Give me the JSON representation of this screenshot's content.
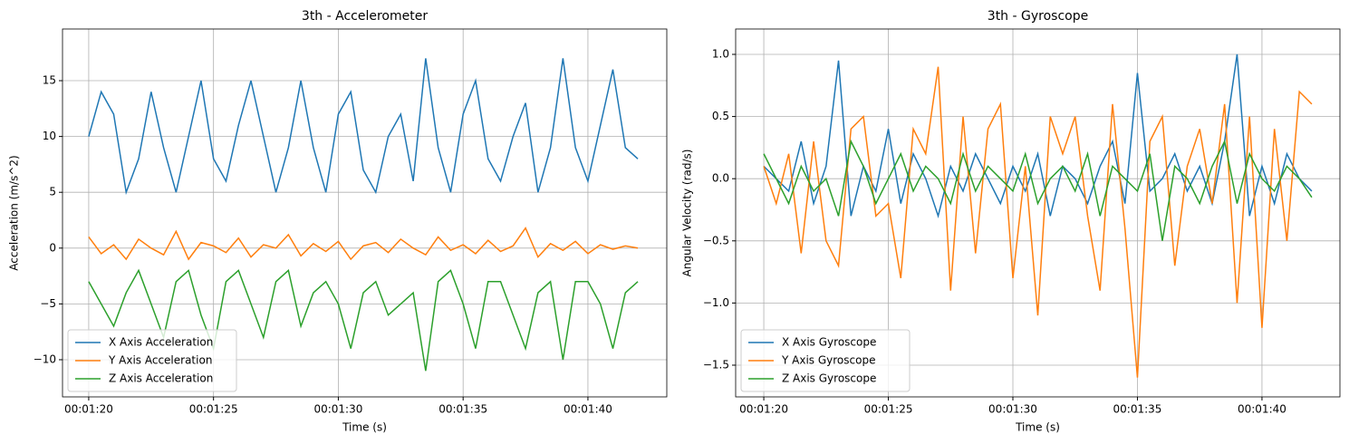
{
  "chart_data": [
    {
      "type": "line",
      "title": "3th - Accelerometer",
      "xlabel": "Time (s)",
      "ylabel": "Acceleration (m/s^2)",
      "x": [
        80,
        80.5,
        81,
        81.5,
        82,
        82.5,
        83,
        83.5,
        84,
        84.5,
        85,
        85.5,
        86,
        86.5,
        87,
        87.5,
        88,
        88.5,
        89,
        89.5,
        90,
        90.5,
        91,
        91.5,
        92,
        92.5,
        93,
        93.5,
        94,
        94.5,
        95,
        95.5,
        96,
        96.5,
        97,
        97.5,
        98,
        98.5,
        99,
        99.5,
        100,
        100.5,
        101,
        101.5,
        102
      ],
      "series": [
        {
          "name": "X Axis Acceleration",
          "color": "#1f77b4",
          "values": [
            10,
            14,
            12,
            5,
            8,
            14,
            9,
            5,
            10,
            15,
            8,
            6,
            11,
            15,
            10,
            5,
            9,
            15,
            9,
            5,
            12,
            14,
            7,
            5,
            10,
            12,
            6,
            17,
            9,
            5,
            12,
            15,
            8,
            6,
            10,
            13,
            5,
            9,
            17,
            9,
            6,
            11,
            16,
            9,
            8
          ]
        },
        {
          "name": "Y Axis Acceleration",
          "color": "#ff7f0e",
          "values": [
            1,
            -0.5,
            0.3,
            -1,
            0.8,
            0,
            -0.6,
            1.5,
            -1,
            0.5,
            0.2,
            -0.4,
            0.9,
            -0.8,
            0.3,
            0,
            1.2,
            -0.7,
            0.4,
            -0.3,
            0.6,
            -1,
            0.2,
            0.5,
            -0.4,
            0.8,
            0,
            -0.6,
            1,
            -0.2,
            0.3,
            -0.5,
            0.7,
            -0.3,
            0.2,
            1.8,
            -0.8,
            0.4,
            -0.2,
            0.6,
            -0.5,
            0.3,
            -0.1,
            0.2,
            0
          ]
        },
        {
          "name": "Z Axis Acceleration",
          "color": "#2ca02c",
          "values": [
            -3,
            -5,
            -7,
            -4,
            -2,
            -5,
            -8,
            -3,
            -2,
            -6,
            -9,
            -3,
            -2,
            -5,
            -8,
            -3,
            -2,
            -7,
            -4,
            -3,
            -5,
            -9,
            -4,
            -3,
            -6,
            -5,
            -4,
            -11,
            -3,
            -2,
            -5,
            -9,
            -3,
            -3,
            -6,
            -9,
            -4,
            -3,
            -10,
            -3,
            -3,
            -5,
            -9,
            -4,
            -3
          ]
        }
      ],
      "xlim": [
        78.95,
        103.16
      ],
      "xticks": [
        {
          "value": 80,
          "label": "00:01:20"
        },
        {
          "value": 85,
          "label": "00:01:25"
        },
        {
          "value": 90,
          "label": "00:01:30"
        },
        {
          "value": 95,
          "label": "00:01:35"
        },
        {
          "value": 100,
          "label": "00:01:40"
        }
      ],
      "ylim": [
        -13.33,
        19.63
      ],
      "yticks": [
        {
          "value": -10,
          "label": "−10"
        },
        {
          "value": -5,
          "label": "−5"
        },
        0,
        5,
        10,
        15
      ],
      "grid": true,
      "legend": "lower left"
    },
    {
      "type": "line",
      "title": "3th - Gyroscope",
      "xlabel": "Time (s)",
      "ylabel": "Angular Velocity (rad/s)",
      "x": [
        80,
        80.5,
        81,
        81.5,
        82,
        82.5,
        83,
        83.5,
        84,
        84.5,
        85,
        85.5,
        86,
        86.5,
        87,
        87.5,
        88,
        88.5,
        89,
        89.5,
        90,
        90.5,
        91,
        91.5,
        92,
        92.5,
        93,
        93.5,
        94,
        94.5,
        95,
        95.5,
        96,
        96.5,
        97,
        97.5,
        98,
        98.5,
        99,
        99.5,
        100,
        100.5,
        101,
        101.5,
        102
      ],
      "series": [
        {
          "name": "X Axis Gyroscope",
          "color": "#1f77b4",
          "values": [
            0.1,
            0,
            -0.1,
            0.3,
            -0.2,
            0.1,
            0.95,
            -0.3,
            0.1,
            -0.1,
            0.4,
            -0.2,
            0.2,
            0,
            -0.3,
            0.1,
            -0.1,
            0.2,
            0,
            -0.2,
            0.1,
            -0.1,
            0.2,
            -0.3,
            0.1,
            0,
            -0.2,
            0.1,
            0.3,
            -0.2,
            0.85,
            -0.1,
            0,
            0.2,
            -0.1,
            0.1,
            -0.2,
            0.3,
            1.0,
            -0.3,
            0.1,
            -0.2,
            0.2,
            0,
            -0.1
          ]
        },
        {
          "name": "Y Axis Gyroscope",
          "color": "#ff7f0e",
          "values": [
            0.1,
            -0.2,
            0.2,
            -0.6,
            0.3,
            -0.5,
            -0.7,
            0.4,
            0.5,
            -0.3,
            -0.2,
            -0.8,
            0.4,
            0.2,
            0.9,
            -0.9,
            0.5,
            -0.6,
            0.4,
            0.6,
            -0.8,
            0.1,
            -1.1,
            0.5,
            0.2,
            0.5,
            -0.3,
            -0.9,
            0.6,
            -0.4,
            -1.6,
            0.3,
            0.5,
            -0.7,
            0.1,
            0.4,
            -0.2,
            0.6,
            -1.0,
            0.5,
            -1.2,
            0.4,
            -0.5,
            0.7,
            0.6
          ]
        },
        {
          "name": "Z Axis Gyroscope",
          "color": "#2ca02c",
          "values": [
            0.2,
            0,
            -0.2,
            0.1,
            -0.1,
            0,
            -0.3,
            0.3,
            0.1,
            -0.2,
            0,
            0.2,
            -0.1,
            0.1,
            0,
            -0.2,
            0.2,
            -0.1,
            0.1,
            0,
            -0.1,
            0.2,
            -0.2,
            0,
            0.1,
            -0.1,
            0.2,
            -0.3,
            0.1,
            0,
            -0.1,
            0.2,
            -0.5,
            0.1,
            0,
            -0.2,
            0.1,
            0.3,
            -0.2,
            0.2,
            0,
            -0.1,
            0.1,
            0,
            -0.15
          ]
        }
      ],
      "xlim": [
        78.87,
        103.13
      ],
      "xticks": [
        {
          "value": 80,
          "label": "00:01:20"
        },
        {
          "value": 85,
          "label": "00:01:25"
        },
        {
          "value": 90,
          "label": "00:01:30"
        },
        {
          "value": 95,
          "label": "00:01:35"
        },
        {
          "value": 100,
          "label": "00:01:40"
        }
      ],
      "ylim": [
        -1.755,
        1.204
      ],
      "yticks": [
        {
          "value": -1.5,
          "label": "−1.5"
        },
        {
          "value": -1,
          "label": "−1.0"
        },
        {
          "value": -0.5,
          "label": "−0.5"
        },
        {
          "value": 0,
          "label": "0.0"
        },
        0.5,
        {
          "value": 1,
          "label": "1.0"
        }
      ],
      "grid": true,
      "legend": "lower left"
    }
  ]
}
